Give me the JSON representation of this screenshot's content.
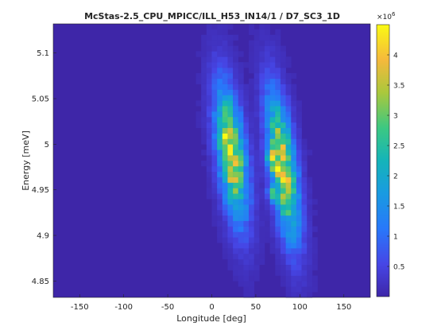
{
  "chart_data": {
    "type": "heatmap",
    "title": "McStas-2.5_CPU_MPICC/ILL_H53_IN14/1 / D7_SC3_1D",
    "xlabel": "Longitude [deg]",
    "ylabel": "Energy [meV]",
    "xlim": [
      -180,
      180
    ],
    "ylim": [
      4.832,
      5.132
    ],
    "xticks": [
      -150,
      -100,
      -50,
      0,
      50,
      100,
      150
    ],
    "yticks": [
      4.85,
      4.9,
      4.95,
      5.0,
      5.05,
      5.1
    ],
    "xtick_labels": [
      "-150",
      "-100",
      "-50",
      "0",
      "50",
      "100",
      "150"
    ],
    "ytick_labels": [
      "4.85",
      "4.9",
      "4.95",
      "5",
      "5.05",
      "5.1"
    ],
    "grid": false,
    "colorbar": {
      "min": 0,
      "max": 4.5,
      "multiplier_label": "×10",
      "multiplier_exponent": "6",
      "ticks": [
        0.5,
        1,
        1.5,
        2,
        2.5,
        3,
        3.5,
        4
      ],
      "tick_labels": [
        "0.5",
        "1",
        "1.5",
        "2",
        "2.5",
        "3",
        "3.5",
        "4"
      ],
      "colormap": "parula"
    },
    "grid_shape": {
      "nx": 60,
      "ny": 50
    },
    "bands": [
      {
        "x_at_top": 5,
        "x_at_bottom": 42,
        "y_center": 4.99,
        "y_width": 0.07,
        "x_width": 15,
        "peak": 3.6
      },
      {
        "x_at_top": 60,
        "x_at_bottom": 100,
        "y_center": 4.975,
        "y_width": 0.075,
        "x_width": 14,
        "peak": 3.7
      }
    ],
    "background_value": 0.08,
    "hot_spots": [
      {
        "x": 16,
        "y": 5.005,
        "value": 4.4
      },
      {
        "x": 22,
        "y": 4.965,
        "value": 4.0
      },
      {
        "x": 68,
        "y": 4.985,
        "value": 4.5
      },
      {
        "x": 74,
        "y": 4.975,
        "value": 4.1
      },
      {
        "x": 70,
        "y": 4.945,
        "value": 3.9
      }
    ]
  }
}
